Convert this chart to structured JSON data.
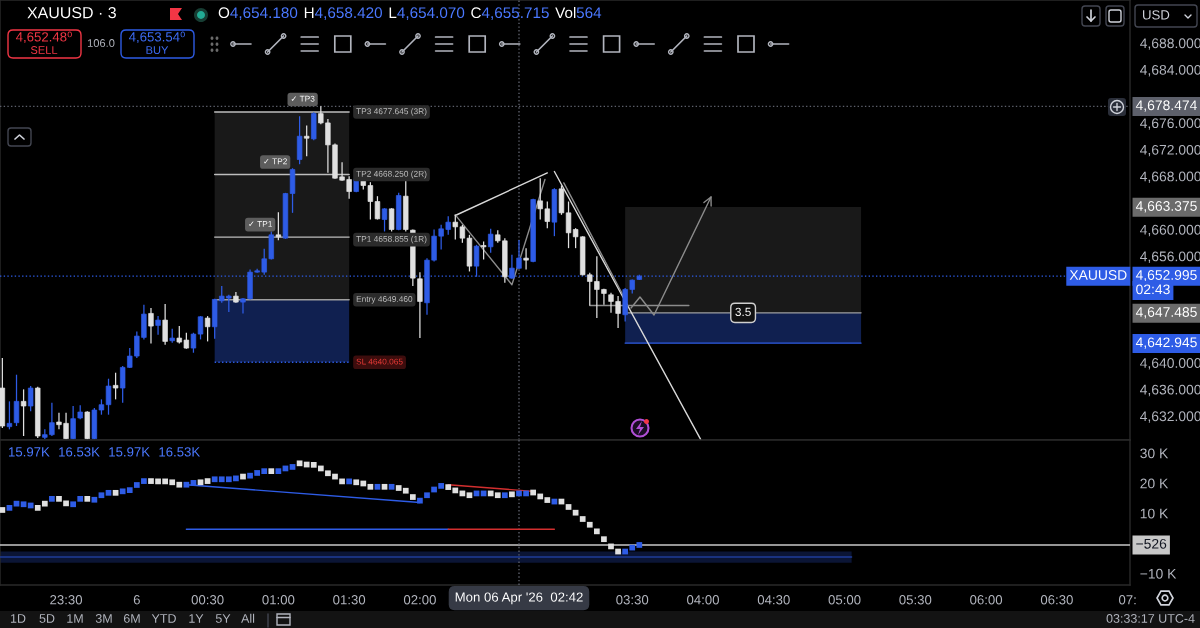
{
  "chart_data": [
    {
      "type": "candlestick",
      "title": "XAUUSD · 3",
      "subtitle": "O4,654.180 H4,658.420 L4,654.070 C4,655.715 Vol564",
      "x": [
        "2026-04-05T23:03",
        "2026-04-05T23:06",
        "2026-04-05T23:09",
        "2026-04-05T23:12",
        "2026-04-05T23:15",
        "2026-04-05T23:18",
        "2026-04-05T23:21",
        "2026-04-05T23:24",
        "2026-04-05T23:27",
        "2026-04-05T23:30",
        "2026-04-05T23:33",
        "2026-04-05T23:36",
        "2026-04-05T23:39",
        "2026-04-05T23:42",
        "2026-04-05T23:45",
        "2026-04-05T23:48",
        "2026-04-05T23:51",
        "2026-04-05T23:54",
        "2026-04-05T23:57",
        "2026-04-06T00:00",
        "2026-04-06T00:03",
        "2026-04-06T00:06",
        "2026-04-06T00:09",
        "2026-04-06T00:12",
        "2026-04-06T00:15",
        "2026-04-06T00:18",
        "2026-04-06T00:21",
        "2026-04-06T00:24",
        "2026-04-06T00:27",
        "2026-04-06T00:30",
        "2026-04-06T00:33",
        "2026-04-06T00:36",
        "2026-04-06T00:39",
        "2026-04-06T00:42",
        "2026-04-06T00:45",
        "2026-04-06T00:48",
        "2026-04-06T00:51",
        "2026-04-06T00:54",
        "2026-04-06T00:57",
        "2026-04-06T01:00",
        "2026-04-06T01:03",
        "2026-04-06T01:06",
        "2026-04-06T01:09",
        "2026-04-06T01:12",
        "2026-04-06T01:15",
        "2026-04-06T01:18",
        "2026-04-06T01:21",
        "2026-04-06T01:24",
        "2026-04-06T01:27",
        "2026-04-06T01:30",
        "2026-04-06T01:33",
        "2026-04-06T01:36",
        "2026-04-06T01:39",
        "2026-04-06T01:42",
        "2026-04-06T01:45",
        "2026-04-06T01:48",
        "2026-04-06T01:51",
        "2026-04-06T01:54",
        "2026-04-06T01:57",
        "2026-04-06T02:00",
        "2026-04-06T02:03",
        "2026-04-06T02:06",
        "2026-04-06T02:09",
        "2026-04-06T02:12",
        "2026-04-06T02:15",
        "2026-04-06T02:18",
        "2026-04-06T02:21",
        "2026-04-06T02:24",
        "2026-04-06T02:27",
        "2026-04-06T02:30",
        "2026-04-06T02:33",
        "2026-04-06T02:36",
        "2026-04-06T02:39",
        "2026-04-06T02:42",
        "2026-04-06T02:45",
        "2026-04-06T02:48",
        "2026-04-06T02:51",
        "2026-04-06T02:54",
        "2026-04-06T02:57",
        "2026-04-06T03:00",
        "2026-04-06T03:03",
        "2026-04-06T03:06",
        "2026-04-06T03:09",
        "2026-04-06T03:12",
        "2026-04-06T03:15",
        "2026-04-06T03:18",
        "2026-04-06T03:21",
        "2026-04-06T03:24",
        "2026-04-06T03:27",
        "2026-04-06T03:30",
        "2026-04-06T03:33"
      ],
      "ohlc": [
        [
          4636.2,
          4640.7,
          4630.2,
          4630.5
        ],
        [
          4630.4,
          4634.2,
          4630.0,
          4630.9
        ],
        [
          4631.0,
          4638.2,
          4630.5,
          4634.2
        ],
        [
          4634.2,
          4636.0,
          4629.0,
          4633.5
        ],
        [
          4633.5,
          4636.5,
          4632.7,
          4636.2
        ],
        [
          4636.2,
          4636.4,
          4628.7,
          4629.0
        ],
        [
          4628.8,
          4630.0,
          4628.5,
          4629.2
        ],
        [
          4629.2,
          4634.0,
          4629.0,
          4631.0
        ],
        [
          4631.1,
          4632.5,
          4630.0,
          4630.7
        ],
        [
          4630.9,
          4632.5,
          4628.5,
          4628.6
        ],
        [
          4628.6,
          4633.5,
          4628.5,
          4631.6
        ],
        [
          4631.7,
          4633.6,
          4631.5,
          4632.6
        ],
        [
          4632.6,
          4632.7,
          4628.5,
          4628.6
        ],
        [
          4628.6,
          4633.2,
          4628.5,
          4632.9
        ],
        [
          4632.9,
          4634.5,
          4632.2,
          4633.7
        ],
        [
          4633.7,
          4637.6,
          4632.2,
          4636.5
        ],
        [
          4636.6,
          4638.5,
          4634.5,
          4636.2
        ],
        [
          4636.2,
          4639.5,
          4634.0,
          4639.3
        ],
        [
          4639.3,
          4642.2,
          4639.2,
          4641.0
        ],
        [
          4641.0,
          4644.7,
          4640.7,
          4644.0
        ],
        [
          4643.8,
          4648.7,
          4643.5,
          4647.3
        ],
        [
          4647.4,
          4648.2,
          4642.9,
          4645.5
        ],
        [
          4645.6,
          4647.0,
          4644.2,
          4646.4
        ],
        [
          4646.4,
          4648.8,
          4642.7,
          4643.2
        ],
        [
          4643.3,
          4645.1,
          4643.0,
          4643.7
        ],
        [
          4643.7,
          4645.5,
          4642.9,
          4643.1
        ],
        [
          4643.4,
          4644.5,
          4642.1,
          4642.2
        ],
        [
          4642.2,
          4644.5,
          4641.5,
          4644.3
        ],
        [
          4644.3,
          4647.0,
          4643.5,
          4646.9
        ],
        [
          4646.7,
          4647.0,
          4643.2,
          4645.4
        ],
        [
          4645.4,
          4649.6,
          4643.6,
          4649.5
        ],
        [
          4649.3,
          4651.5,
          4649.0,
          4650.0
        ],
        [
          4649.7,
          4650.2,
          4647.6,
          4650.0
        ],
        [
          4650.0,
          4650.6,
          4649.0,
          4649.1
        ],
        [
          4649.1,
          4649.7,
          4647.4,
          4649.6
        ],
        [
          4649.6,
          4654.0,
          4649.5,
          4653.6
        ],
        [
          4653.6,
          4654.1,
          4653.5,
          4653.8
        ],
        [
          4653.6,
          4657.1,
          4653.2,
          4655.6
        ],
        [
          4655.6,
          4659.7,
          4655.5,
          4659.2
        ],
        [
          4659.2,
          4662.6,
          4658.4,
          4658.9
        ],
        [
          4658.7,
          4665.5,
          4658.6,
          4665.4
        ],
        [
          4665.4,
          4669.2,
          4662.5,
          4669.0
        ],
        [
          4670.5,
          4677.0,
          4669.8,
          4674.0
        ],
        [
          4674.0,
          4675.6,
          4671.0,
          4673.7
        ],
        [
          4673.6,
          4677.6,
          4673.4,
          4677.4
        ],
        [
          4677.4,
          4678.5,
          4675.8,
          4676.0
        ],
        [
          4676.0,
          4676.6,
          4668.5,
          4672.7
        ],
        [
          4672.7,
          4672.9,
          4667.6,
          4667.7
        ],
        [
          4667.9,
          4670.1,
          4667.3,
          4667.4
        ],
        [
          4667.5,
          4668.0,
          4664.6,
          4665.7
        ],
        [
          4665.7,
          4667.9,
          4665.6,
          4667.6
        ],
        [
          4667.5,
          4668.1,
          4666.0,
          4666.6
        ],
        [
          4666.6,
          4667.1,
          4661.5,
          4664.2
        ],
        [
          4664.2,
          4665.0,
          4661.5,
          4661.6
        ],
        [
          4661.5,
          4663.2,
          4659.7,
          4663.1
        ],
        [
          4663.1,
          4663.2,
          4659.7,
          4660.0
        ],
        [
          4660.0,
          4665.5,
          4659.9,
          4665.1
        ],
        [
          4665.0,
          4667.6,
          4659.7,
          4660.0
        ],
        [
          4659.9,
          4660.0,
          4651.5,
          4652.7
        ],
        [
          4652.6,
          4653.6,
          4643.7,
          4649.2
        ],
        [
          4649.0,
          4655.7,
          4647.2,
          4655.4
        ],
        [
          4655.4,
          4660.0,
          4655.2,
          4659.0
        ],
        [
          4659.0,
          4660.7,
          4657.0,
          4660.1
        ],
        [
          4660.0,
          4662.0,
          4659.2,
          4661.1
        ],
        [
          4661.1,
          4662.2,
          4658.5,
          4660.4
        ],
        [
          4660.4,
          4660.7,
          4658.0,
          4658.7
        ],
        [
          4658.7,
          4659.2,
          4653.7,
          4654.5
        ],
        [
          4654.5,
          4657.7,
          4652.9,
          4657.5
        ],
        [
          4657.6,
          4658.2,
          4655.5,
          4657.4
        ],
        [
          4657.4,
          4660.1,
          4656.5,
          4659.3
        ],
        [
          4659.2,
          4659.9,
          4658.0,
          4658.3
        ],
        [
          4658.3,
          4658.7,
          4652.0,
          4652.9
        ],
        [
          4652.7,
          4656.2,
          4652.6,
          4654.2
        ],
        [
          4654.18,
          4658.42,
          4654.07,
          4655.715
        ],
        [
          4655.7,
          4657.2,
          4654.0,
          4655.4
        ],
        [
          4655.2,
          4664.6,
          4655.1,
          4664.5
        ],
        [
          4664.3,
          4667.7,
          4661.5,
          4663.1
        ],
        [
          4663.1,
          4664.2,
          4660.2,
          4661.2
        ],
        [
          4661.1,
          4666.2,
          4659.0,
          4666.0
        ],
        [
          4666.1,
          4666.6,
          4662.2,
          4662.5
        ],
        [
          4662.5,
          4664.2,
          4657.2,
          4659.5
        ],
        [
          4660.0,
          4660.2,
          4657.2,
          4658.9
        ],
        [
          4658.9,
          4659.0,
          4653.1,
          4653.2
        ],
        [
          4653.2,
          4653.5,
          4648.6,
          4652.2
        ],
        [
          4652.2,
          4656.0,
          4646.7,
          4651.0
        ],
        [
          4651.0,
          4651.1,
          4648.7,
          4650.4
        ],
        [
          4650.2,
          4650.5,
          4647.5,
          4649.2
        ],
        [
          4649.2,
          4650.0,
          4645.2,
          4647.4
        ],
        [
          4647.2,
          4651.2,
          4646.2,
          4651.0
        ],
        [
          4651.0,
          4652.5,
          4650.4,
          4652.4
        ],
        [
          4652.5,
          4653.2,
          4652.4,
          4652.995
        ]
      ],
      "colors": [
        "#e0e0e0",
        "#2e5ce6",
        "#2e5ce6",
        "#e0e0e0",
        "#2e5ce6",
        "#e0e0e0",
        "#2e5ce6",
        "#2e5ce6",
        "#e0e0e0",
        "#e0e0e0",
        "#2e5ce6",
        "#2e5ce6",
        "#e0e0e0",
        "#2e5ce6",
        "#2e5ce6",
        "#2e5ce6",
        "#e0e0e0",
        "#2e5ce6",
        "#2e5ce6",
        "#2e5ce6",
        "#2e5ce6",
        "#e0e0e0",
        "#2e5ce6",
        "#e0e0e0",
        "#2e5ce6",
        "#e0e0e0",
        "#e0e0e0",
        "#2e5ce6",
        "#2e5ce6",
        "#e0e0e0",
        "#2e5ce6",
        "#2e5ce6",
        "#2e5ce6",
        "#e0e0e0",
        "#2e5ce6",
        "#2e5ce6",
        "#2e5ce6",
        "#2e5ce6",
        "#2e5ce6",
        "#e0e0e0",
        "#2e5ce6",
        "#2e5ce6",
        "#2e5ce6",
        "#e0e0e0",
        "#2e5ce6",
        "#e0e0e0",
        "#e0e0e0",
        "#e0e0e0",
        "#e0e0e0",
        "#e0e0e0",
        "#2e5ce6",
        "#e0e0e0",
        "#e0e0e0",
        "#e0e0e0",
        "#2e5ce6",
        "#e0e0e0",
        "#2e5ce6",
        "#e0e0e0",
        "#e0e0e0",
        "#e0e0e0",
        "#2e5ce6",
        "#2e5ce6",
        "#2e5ce6",
        "#2e5ce6",
        "#e0e0e0",
        "#e0e0e0",
        "#e0e0e0",
        "#2e5ce6",
        "#e0e0e0",
        "#2e5ce6",
        "#e0e0e0",
        "#e0e0e0",
        "#2e5ce6",
        "#2e5ce6",
        "#e0e0e0",
        "#2e5ce6",
        "#e0e0e0",
        "#e0e0e0",
        "#2e5ce6",
        "#e0e0e0",
        "#e0e0e0",
        "#e0e0e0",
        "#e0e0e0",
        "#e0e0e0",
        "#e0e0e0",
        "#e0e0e0",
        "#e0e0e0",
        "#e0e0e0",
        "#2e5ce6",
        "#2e5ce6",
        "#2e5ce6"
      ],
      "xlim": [
        "2026-04-05T23:02",
        "2026-04-06T07:01"
      ],
      "ylim": [
        4628.4,
        4694.45
      ],
      "yticks": [
        {
          "value": 4632,
          "label": "4,632.000"
        },
        {
          "value": 4636,
          "label": "4,636.000"
        },
        {
          "value": 4640,
          "label": "4,640.000"
        },
        {
          "value": 4656,
          "label": "4,656.000"
        },
        {
          "value": 4660,
          "label": "4,660.000"
        },
        {
          "value": 4668,
          "label": "4,668.000"
        },
        {
          "value": 4672,
          "label": "4,672.000"
        },
        {
          "value": 4676,
          "label": "4,676.000"
        },
        {
          "value": 4684,
          "label": "4,684.000"
        },
        {
          "value": 4688,
          "label": "4,688.000"
        }
      ],
      "tick_labels": "y",
      "grid": false,
      "series": [
        {
          "type": "line",
          "x": [
            "2026-04-06T00:33",
            "2026-04-06T01:30"
          ],
          "values": [
            4649.46,
            4649.46
          ],
          "lower": [
            4649.46,
            4649.46
          ],
          "upper": [
            4677.645,
            4677.645
          ],
          "color": "#9e9e9e"
        },
        {
          "type": "line",
          "x": [
            "2026-04-06T00:33",
            "2026-04-06T01:30"
          ],
          "values": [
            4640.065,
            4640.065
          ],
          "lower": [
            4640.065,
            4640.065
          ],
          "upper": [
            4649.46,
            4649.46
          ],
          "color": "#2e5ce6",
          "line_style": "dotted"
        },
        {
          "type": "line",
          "x": [
            "2026-04-06T00:33",
            "2026-04-06T01:30"
          ],
          "values": [
            4658.855,
            4658.855
          ],
          "color": "#bdbdbd"
        },
        {
          "type": "line",
          "x": [
            "2026-04-06T00:33",
            "2026-04-06T01:30"
          ],
          "values": [
            4668.25,
            4668.25
          ],
          "color": "#bdbdbd"
        },
        {
          "type": "line",
          "x": [
            "2026-04-06T00:33",
            "2026-04-06T01:30"
          ],
          "values": [
            4677.645,
            4677.645
          ],
          "color": "#bdbdbd"
        },
        {
          "type": "line",
          "x": [
            "2026-04-06T03:27",
            "2026-04-06T05:07"
          ],
          "values": [
            4647.485,
            4647.485
          ],
          "lower": [
            4647.485,
            4647.485
          ],
          "upper": [
            4663.375,
            4663.375
          ],
          "color": "#9e9e9e"
        },
        {
          "type": "line",
          "x": [
            "2026-04-06T03:27",
            "2026-04-06T05:07"
          ],
          "values": [
            4642.945,
            4642.945
          ],
          "lower": [
            4642.945,
            4642.945
          ],
          "upper": [
            4647.485,
            4647.485
          ],
          "color": "#2e5ce6"
        },
        {
          "type": "line",
          "x": [
            "2026-04-06T02:15",
            "2026-04-06T02:54"
          ],
          "values": [
            4662.1,
            4668.5
          ],
          "color": "#d9d9d9"
        },
        {
          "type": "line",
          "x": [
            "2026-04-06T02:57",
            "2026-04-06T03:59"
          ],
          "values": [
            4668.7,
            4628.5
          ],
          "color": "#d9d9d9"
        },
        {
          "type": "line",
          "x": [
            "2026-04-06T02:15",
            "2026-04-06T02:39",
            "2026-04-06T02:53"
          ],
          "values": [
            4662.2,
            4651.7,
            4667.5
          ],
          "color": "#8c8c8c"
        },
        {
          "type": "line",
          "x": [
            "2026-04-06T03:12",
            "2026-04-06T03:54"
          ],
          "values": [
            4648.6,
            4648.6
          ],
          "color": "#8c8c8c"
        },
        {
          "type": "line",
          "x": [
            "2026-04-06T03:01",
            "2026-04-06T03:26"
          ],
          "values": [
            4667.0,
            4650.2
          ],
          "color": "#8c8c8c"
        }
      ],
      "ref_lines": [
        {
          "axis": "y",
          "value": 4678.474,
          "label": "4,678.474",
          "color": "#5d606b",
          "line_style": "dotted"
        },
        {
          "axis": "y",
          "value": 4652.995,
          "label": "4,652.995",
          "color": "#2e5ce6",
          "line_style": "dotted"
        },
        {
          "axis": "x",
          "value": "2026-04-06T02:42",
          "color": "#5d606b",
          "line_style": "dotted"
        }
      ],
      "annotations": [
        "4,652.48⁰",
        "SELL",
        "106.0",
        "4,653.54⁰",
        "BUY",
        "USD",
        "4,663.375",
        "4,647.485",
        "4,642.945",
        "02:43",
        {
          "text": "✓ TP1",
          "x": "2026-04-06T00:57",
          "y": 4658.855
        },
        {
          "text": "✓ TP2",
          "x": "2026-04-06T01:06",
          "y": 4668.25
        },
        {
          "text": "✓ TP3",
          "x": "2026-04-06T01:15",
          "y": 4677.645
        },
        {
          "text": "TP3 4677.645 (3R)",
          "x": "2026-04-06T01:30",
          "y": 4677.645
        },
        {
          "text": "TP2 4668.250 (2R)",
          "x": "2026-04-06T01:30",
          "y": 4668.25
        },
        {
          "text": "TP1 4658.855 (1R)",
          "x": "2026-04-06T01:30",
          "y": 4658.855
        },
        {
          "text": "Entry 4649.460",
          "x": "2026-04-06T01:30",
          "y": 4649.46
        },
        {
          "text": "SL 4640.065",
          "x": "2026-04-06T01:30",
          "y": 4640.065
        },
        {
          "text": "3.5",
          "x": "2026-04-06T04:17",
          "y": 4647.485
        },
        {
          "text": "XAUUSD",
          "y": 4652.995
        }
      ]
    },
    {
      "type": "scatter",
      "xlim": [
        "2026-04-05T23:02",
        "2026-04-06T07:01"
      ],
      "ylim": [
        -13820,
        34350
      ],
      "xticks": [
        {
          "value": "2026-04-05T23:30",
          "label": "23:30"
        },
        {
          "value": "2026-04-06",
          "label": "6"
        },
        {
          "value": "2026-04-06T00:30",
          "label": "00:30"
        },
        {
          "value": "2026-04-06T01:00",
          "label": "01:00"
        },
        {
          "value": "2026-04-06T01:30",
          "label": "01:30"
        },
        {
          "value": "2026-04-06T02:00",
          "label": "02:00"
        },
        {
          "value": "2026-04-06T03:30",
          "label": "03:30"
        },
        {
          "value": "2026-04-06T04:00",
          "label": "04:00"
        },
        {
          "value": "2026-04-06T04:30",
          "label": "04:30"
        },
        {
          "value": "2026-04-06T05:00",
          "label": "05:00"
        },
        {
          "value": "2026-04-06T05:30",
          "label": "05:30"
        },
        {
          "value": "2026-04-06T06:00",
          "label": "06:00"
        },
        {
          "value": "2026-04-06T06:30",
          "label": "06:30"
        },
        {
          "value": "2026-04-06T07:00",
          "label": "07:"
        }
      ],
      "yticks": [
        {
          "value": 30000,
          "label": "30 K"
        },
        {
          "value": 20000,
          "label": "20 K"
        },
        {
          "value": 10000,
          "label": "10 K"
        },
        {
          "value": -10000,
          "label": "−10 K"
        }
      ],
      "grid": false,
      "series": [
        {
          "type": "scatter",
          "marker": "square",
          "x": [
            "2026-04-05T23:03",
            "2026-04-05T23:06",
            "2026-04-05T23:09",
            "2026-04-05T23:12",
            "2026-04-05T23:15",
            "2026-04-05T23:18",
            "2026-04-05T23:21",
            "2026-04-05T23:24",
            "2026-04-05T23:27",
            "2026-04-05T23:30",
            "2026-04-05T23:33",
            "2026-04-05T23:36",
            "2026-04-05T23:39",
            "2026-04-05T23:42",
            "2026-04-05T23:45",
            "2026-04-05T23:48",
            "2026-04-05T23:51",
            "2026-04-05T23:54",
            "2026-04-05T23:57",
            "2026-04-06T00:00",
            "2026-04-06T00:03",
            "2026-04-06T00:06",
            "2026-04-06T00:09",
            "2026-04-06T00:12",
            "2026-04-06T00:15",
            "2026-04-06T00:18",
            "2026-04-06T00:21",
            "2026-04-06T00:24",
            "2026-04-06T00:27",
            "2026-04-06T00:30",
            "2026-04-06T00:33",
            "2026-04-06T00:36",
            "2026-04-06T00:39",
            "2026-04-06T00:42",
            "2026-04-06T00:45",
            "2026-04-06T00:48",
            "2026-04-06T00:51",
            "2026-04-06T00:54",
            "2026-04-06T00:57",
            "2026-04-06T01:00",
            "2026-04-06T01:03",
            "2026-04-06T01:06",
            "2026-04-06T01:09",
            "2026-04-06T01:12",
            "2026-04-06T01:15",
            "2026-04-06T01:18",
            "2026-04-06T01:21",
            "2026-04-06T01:24",
            "2026-04-06T01:27",
            "2026-04-06T01:30",
            "2026-04-06T01:33",
            "2026-04-06T01:36",
            "2026-04-06T01:39",
            "2026-04-06T01:42",
            "2026-04-06T01:45",
            "2026-04-06T01:48",
            "2026-04-06T01:51",
            "2026-04-06T01:54",
            "2026-04-06T01:57",
            "2026-04-06T02:00",
            "2026-04-06T02:03",
            "2026-04-06T02:06",
            "2026-04-06T02:09",
            "2026-04-06T02:12",
            "2026-04-06T02:15",
            "2026-04-06T02:18",
            "2026-04-06T02:21",
            "2026-04-06T02:24",
            "2026-04-06T02:27",
            "2026-04-06T02:30",
            "2026-04-06T02:33",
            "2026-04-06T02:36",
            "2026-04-06T02:39",
            "2026-04-06T02:42",
            "2026-04-06T02:45",
            "2026-04-06T02:48",
            "2026-04-06T02:51",
            "2026-04-06T02:54",
            "2026-04-06T02:57",
            "2026-04-06T03:00",
            "2026-04-06T03:03",
            "2026-04-06T03:06",
            "2026-04-06T03:09",
            "2026-04-06T03:12",
            "2026-04-06T03:15",
            "2026-04-06T03:18",
            "2026-04-06T03:21",
            "2026-04-06T03:24",
            "2026-04-06T03:27",
            "2026-04-06T03:30",
            "2026-04-06T03:33"
          ],
          "values": [
            11100,
            11800,
            13200,
            13000,
            12600,
            11800,
            13200,
            14800,
            14800,
            13300,
            13000,
            14800,
            14800,
            14500,
            16000,
            16800,
            16800,
            17300,
            17700,
            19400,
            20700,
            20700,
            20600,
            20600,
            20300,
            19500,
            19500,
            20100,
            20300,
            20700,
            21300,
            21300,
            21300,
            21600,
            22200,
            22500,
            23400,
            24000,
            24000,
            24000,
            24900,
            25400,
            26600,
            26200,
            26100,
            24900,
            23300,
            22200,
            20600,
            20600,
            20300,
            19900,
            18800,
            18800,
            18800,
            18800,
            18400,
            17500,
            15400,
            14200,
            16000,
            17900,
            19100,
            18700,
            17600,
            16600,
            16000,
            16600,
            16600,
            16600,
            16000,
            16000,
            16300,
            16600,
            16600,
            16900,
            15600,
            14400,
            13900,
            13900,
            12100,
            10200,
            8100,
            6200,
            4000,
            1400,
            -1000,
            -2700,
            -2700,
            -1400,
            -526
          ],
          "colors": [
            "#e0e0e0",
            "#2e5ce6",
            "#2e5ce6",
            "#2e5ce6",
            "#2e5ce6",
            "#e0e0e0",
            "#e0e0e0",
            "#2e5ce6",
            "#e0e0e0",
            "#e0e0e0",
            "#2e5ce6",
            "#2e5ce6",
            "#e0e0e0",
            "#2e5ce6",
            "#2e5ce6",
            "#2e5ce6",
            "#e0e0e0",
            "#2e5ce6",
            "#2e5ce6",
            "#2e5ce6",
            "#2e5ce6",
            "#e0e0e0",
            "#e0e0e0",
            "#e0e0e0",
            "#e0e0e0",
            "#e0e0e0",
            "#2e5ce6",
            "#2e5ce6",
            "#e0e0e0",
            "#e0e0e0",
            "#2e5ce6",
            "#2e5ce6",
            "#2e5ce6",
            "#2e5ce6",
            "#e0e0e0",
            "#2e5ce6",
            "#2e5ce6",
            "#2e5ce6",
            "#e0e0e0",
            "#2e5ce6",
            "#2e5ce6",
            "#2e5ce6",
            "#e0e0e0",
            "#e0e0e0",
            "#e0e0e0",
            "#e0e0e0",
            "#e0e0e0",
            "#e0e0e0",
            "#e0e0e0",
            "#2e5ce6",
            "#e0e0e0",
            "#e0e0e0",
            "#e0e0e0",
            "#2e5ce6",
            "#e0e0e0",
            "#2e5ce6",
            "#e0e0e0",
            "#e0e0e0",
            "#e0e0e0",
            "#2e5ce6",
            "#2e5ce6",
            "#2e5ce6",
            "#2e5ce6",
            "#e0e0e0",
            "#e0e0e0",
            "#e0e0e0",
            "#e0e0e0",
            "#2e5ce6",
            "#2e5ce6",
            "#e0e0e0",
            "#e0e0e0",
            "#2e5ce6",
            "#e0e0e0",
            "#2e5ce6",
            "#2e5ce6",
            "#e0e0e0",
            "#e0e0e0",
            "#e0e0e0",
            "#2e5ce6",
            "#e0e0e0",
            "#e0e0e0",
            "#e0e0e0",
            "#e0e0e0",
            "#e0e0e0",
            "#e0e0e0",
            "#e0e0e0",
            "#e0e0e0",
            "#e0e0e0",
            "#2e5ce6",
            "#2e5ce6",
            "#2e5ce6"
          ]
        },
        {
          "type": "line",
          "x": [
            "2026-04-06T00:21",
            "2026-04-06T02:00"
          ],
          "values": [
            19500,
            13600
          ],
          "color": "#2e5ce6"
        },
        {
          "type": "line",
          "x": [
            "2026-04-06T02:12",
            "2026-04-06T02:48"
          ],
          "values": [
            19500,
            17300
          ],
          "color": "#d32f2f"
        },
        {
          "type": "line",
          "x": [
            "2026-04-06T00:21",
            "2026-04-06T02:12"
          ],
          "values": [
            4700,
            4700
          ],
          "color": "#2e5ce6"
        },
        {
          "type": "line",
          "x": [
            "2026-04-06T02:12",
            "2026-04-06T02:57"
          ],
          "values": [
            4700,
            4700
          ],
          "color": "#d32f2f"
        },
        {
          "type": "line",
          "x": [
            "2026-04-05T23:02",
            "2026-04-06T05:03"
          ],
          "values": [
            -4500,
            -4500
          ],
          "lower": [
            -6400,
            -6400
          ],
          "upper": [
            -2700,
            -2700
          ],
          "color": "#1f3d99"
        }
      ],
      "ref_lines": [
        {
          "axis": "y",
          "value": -526,
          "label": "−526",
          "color": "#c8c8c8"
        },
        {
          "axis": "x",
          "value": "2026-04-06T02:42",
          "label": "Mon 06 Apr '26  02:42",
          "color": "#5d606b",
          "line_style": "dotted"
        }
      ],
      "annotations": [
        "15.97K",
        "16.53K",
        "15.97K",
        "16.53K",
        "1D",
        "5D",
        "1M",
        "3M",
        "6M",
        "YTD",
        "1Y",
        "5Y",
        "All",
        "03:33:17 UTC-4"
      ]
    }
  ]
}
